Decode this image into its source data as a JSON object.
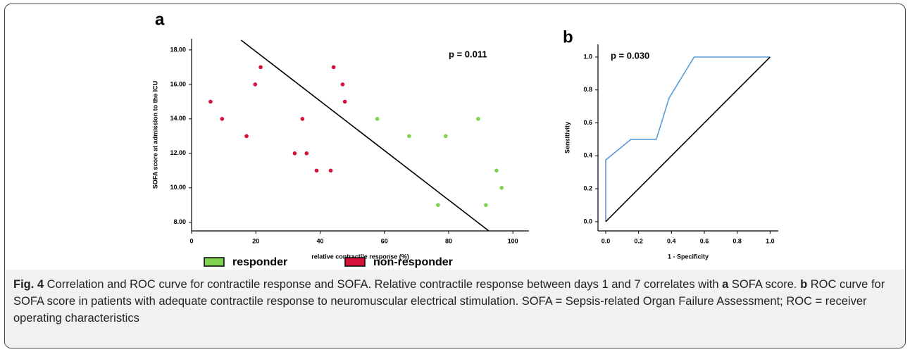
{
  "chart_data": [
    {
      "type": "scatter",
      "panel": "a",
      "x_label": "relative contractile response (%)",
      "y_label": "SOFA score at admission to the ICU",
      "annotation": "p = 0.011",
      "xlim": [
        0,
        105
      ],
      "xticks": [
        0,
        20,
        40,
        60,
        80,
        100
      ],
      "ylim": [
        7.5,
        18.65
      ],
      "yticks": [
        {
          "value": 8,
          "label": "8.00"
        },
        {
          "value": 10,
          "label": "10.00"
        },
        {
          "value": 12,
          "label": "12.00"
        },
        {
          "value": 14,
          "label": "14.00"
        },
        {
          "value": 16,
          "label": "16.00"
        },
        {
          "value": 18,
          "label": "18.00"
        }
      ],
      "series": [
        {
          "name": "responder",
          "color": "#7fd34e",
          "x": [
            57.8,
            67.7,
            76.7,
            79.1,
            91.6,
            89.2,
            94.9,
            96.5
          ],
          "values": [
            14,
            13,
            9,
            13,
            9,
            14,
            11,
            10
          ]
        },
        {
          "name": "non-responder",
          "color": "#d4123c",
          "x": [
            5.9,
            9.5,
            17.1,
            19.8,
            21.5,
            32.1,
            34.5,
            35.8,
            38.9,
            43.3,
            44.2,
            47,
            47.7
          ],
          "values": [
            15,
            14,
            13,
            16,
            17,
            12,
            14,
            12,
            11,
            11,
            17,
            16,
            15
          ]
        }
      ],
      "trend_line": {
        "color": "#000000",
        "x": [
          15.4,
          92.5
        ],
        "y": [
          18.57,
          7.5
        ]
      }
    },
    {
      "type": "line",
      "panel": "b",
      "x_label": "1 - Specificity",
      "y_label": "Sensitivity",
      "annotation": "p = 0.030",
      "xlim": [
        -0.047,
        1.05
      ],
      "ylim": [
        -0.056,
        1.077
      ],
      "xticks": [
        {
          "value": 0,
          "label": "0.0"
        },
        0.2,
        0.4,
        0.6,
        0.8,
        {
          "value": 1,
          "label": "1.0"
        }
      ],
      "yticks": [
        {
          "value": 0,
          "label": "0.0"
        },
        0.2,
        0.4,
        0.6,
        0.8,
        {
          "value": 1,
          "label": "1.0"
        }
      ],
      "series": [
        {
          "color": "#5b9bd5",
          "x": [
            0,
            0,
            0.154,
            0.308,
            0.385,
            0.538,
            1
          ],
          "values": [
            0,
            0.375,
            0.5,
            0.5,
            0.75,
            1,
            1
          ]
        },
        {
          "color": "#000000",
          "x": [
            0,
            1
          ],
          "values": [
            0,
            1
          ]
        }
      ]
    }
  ],
  "caption": [
    {
      "text": "Fig. 4",
      "bold": true
    },
    {
      "text": " Correlation and ROC curve for contractile response and SOFA. Relative contractile response between days 1 and 7 correlates with ",
      "bold": false
    },
    {
      "text": "a",
      "bold": true
    },
    {
      "text": " SOFA score. ",
      "bold": false
    },
    {
      "text": "b",
      "bold": true
    },
    {
      "text": " ROC curve for SOFA score in patients with adequate contractile response to neuromuscular electrical stimulation. SOFA = Sepsis-related Organ Failure Assessment; ROC = receiver operating characteristics",
      "bold": false
    }
  ]
}
